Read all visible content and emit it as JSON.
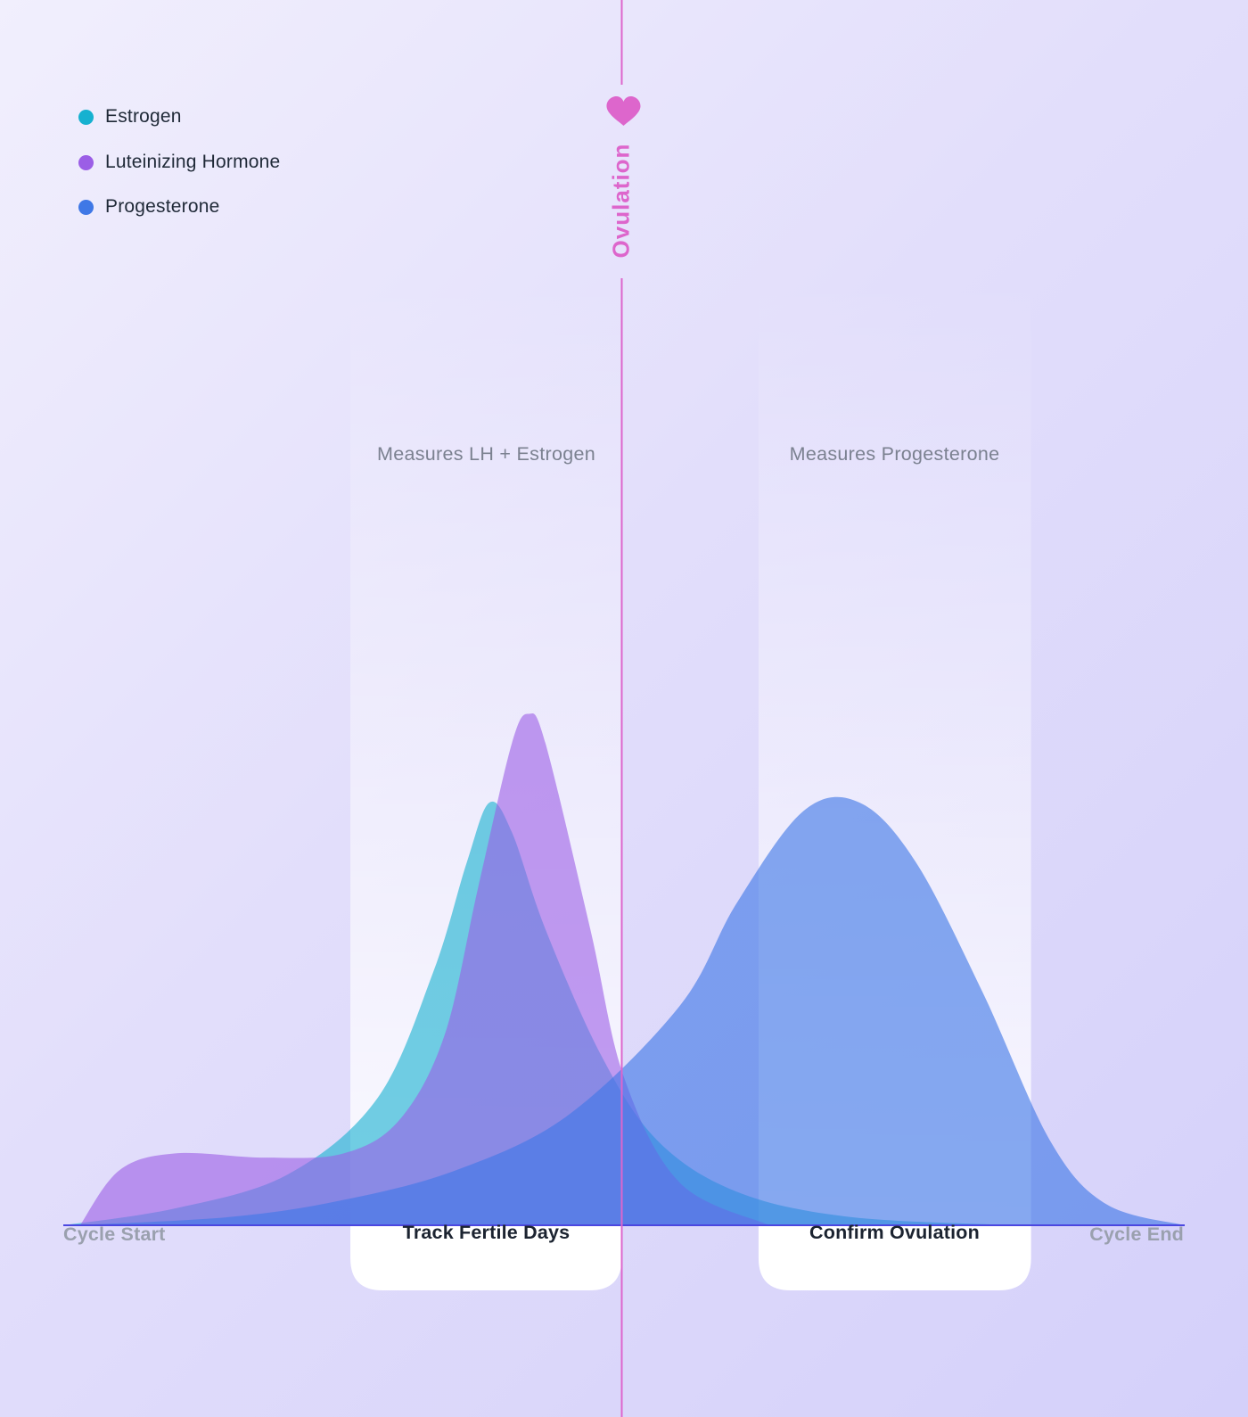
{
  "chart_data": {
    "type": "area",
    "xlabel": "",
    "ylabel": "",
    "x_axis": {
      "start_label": "Cycle Start",
      "end_label": "Cycle End"
    },
    "series": [
      {
        "name": "Estrogen",
        "color": "#16b1d0",
        "points": [
          [
            0.0,
            0.0
          ],
          [
            0.1,
            0.04
          ],
          [
            0.2,
            0.12
          ],
          [
            0.28,
            0.3
          ],
          [
            0.33,
            0.6
          ],
          [
            0.36,
            0.86
          ],
          [
            0.38,
            1.0
          ],
          [
            0.4,
            0.93
          ],
          [
            0.43,
            0.7
          ],
          [
            0.48,
            0.4
          ],
          [
            0.53,
            0.2
          ],
          [
            0.6,
            0.08
          ],
          [
            0.7,
            0.02
          ],
          [
            0.85,
            0.0
          ]
        ]
      },
      {
        "name": "Luteinizing Hormone",
        "color": "#9b5ee6",
        "points": [
          [
            0.015,
            0.0
          ],
          [
            0.05,
            0.13
          ],
          [
            0.1,
            0.17
          ],
          [
            0.18,
            0.16
          ],
          [
            0.25,
            0.17
          ],
          [
            0.3,
            0.25
          ],
          [
            0.34,
            0.45
          ],
          [
            0.37,
            0.8
          ],
          [
            0.4,
            1.14
          ],
          [
            0.415,
            1.21
          ],
          [
            0.43,
            1.14
          ],
          [
            0.47,
            0.7
          ],
          [
            0.5,
            0.35
          ],
          [
            0.55,
            0.1
          ],
          [
            0.63,
            0.0
          ]
        ]
      },
      {
        "name": "Progesterone",
        "color": "#3f78e6",
        "points": [
          [
            0.01,
            0.0
          ],
          [
            0.15,
            0.02
          ],
          [
            0.25,
            0.06
          ],
          [
            0.35,
            0.13
          ],
          [
            0.45,
            0.26
          ],
          [
            0.55,
            0.52
          ],
          [
            0.6,
            0.76
          ],
          [
            0.66,
            0.98
          ],
          [
            0.71,
            1.0
          ],
          [
            0.76,
            0.86
          ],
          [
            0.82,
            0.55
          ],
          [
            0.88,
            0.2
          ],
          [
            0.93,
            0.05
          ],
          [
            1.0,
            0.0
          ]
        ]
      }
    ],
    "legend": {
      "placement": "top-left",
      "entries": [
        "Estrogen",
        "Luteinizing Hormone",
        "Progesterone"
      ]
    },
    "annotations": {
      "ovulation": {
        "label": "Ovulation",
        "color": "#dd66cc",
        "icon": "heart-icon",
        "x": 0.498
      },
      "bands": [
        {
          "caption": "Measures LH + Estrogen",
          "phase_label": "Track Fertile Days",
          "x_range": [
            0.256,
            0.498
          ]
        },
        {
          "caption": "Measures Progesterone",
          "phase_label": "Confirm Ovulation",
          "x_range": [
            0.62,
            0.863
          ]
        }
      ]
    },
    "grid": false
  }
}
